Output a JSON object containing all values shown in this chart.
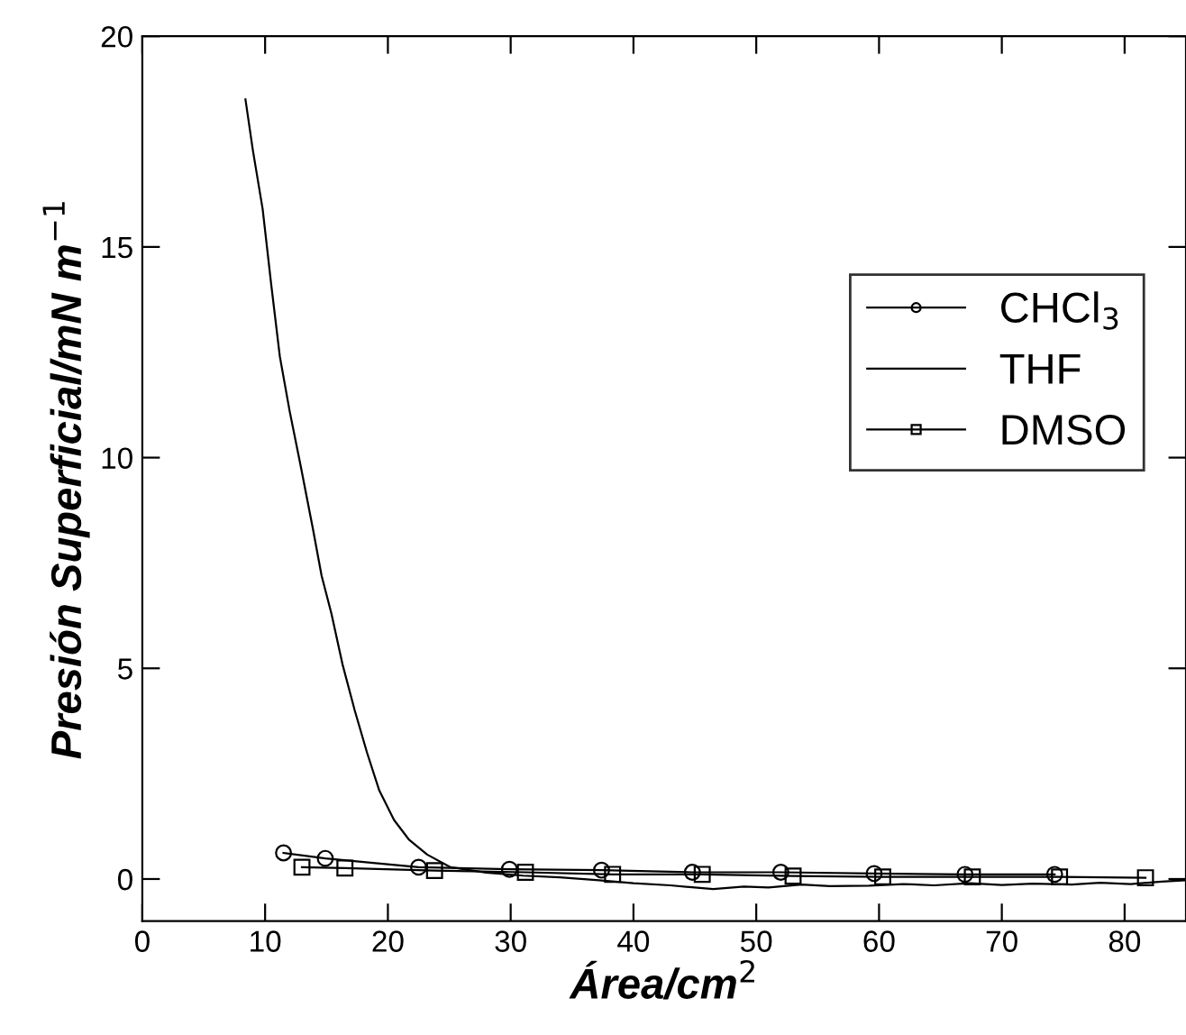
{
  "chart_data": {
    "type": "line",
    "xlabel": "Área/cm$^{2}$",
    "ylabel": "Presión Superficial/mN m$^{−1}$",
    "xlim": [
      0,
      85
    ],
    "ylim": [
      -1,
      20
    ],
    "xticks": [
      0,
      10,
      20,
      30,
      40,
      50,
      60,
      70,
      80
    ],
    "yticks": [
      0,
      5,
      10,
      15,
      20
    ],
    "grid": false,
    "legend": "right",
    "line_style": "solid",
    "series": [
      {
        "name": "CHCl$_{3}$",
        "color": "#000000",
        "marker": "circle",
        "x": [
          11.5,
          14.9,
          22.5,
          29.9,
          37.4,
          44.8,
          52.0,
          59.6,
          67.0,
          74.3
        ],
        "values": [
          0.62,
          0.49,
          0.28,
          0.23,
          0.21,
          0.16,
          0.16,
          0.13,
          0.11,
          0.11
        ]
      },
      {
        "name": "THF",
        "color": "#000000",
        "marker": "none",
        "x": [
          8.4,
          9.0,
          9.8,
          10.5,
          11.2,
          12.0,
          12.9,
          13.9,
          14.6,
          15.4,
          16.3,
          17.3,
          18.3,
          19.3,
          20.5,
          21.7,
          23.2,
          24.6,
          25.1,
          28.0,
          31.0,
          34.0,
          37.2,
          40.0,
          43.0,
          46.5,
          49.0,
          51.0,
          53.7,
          56.0,
          59.2,
          62.0,
          64.5,
          67.4,
          70.0,
          72.5,
          75.7,
          78.0,
          80.5,
          83.0,
          84.9
        ],
        "values": [
          18.5,
          17.3,
          15.9,
          14.1,
          12.4,
          11.1,
          9.8,
          8.3,
          7.2,
          6.3,
          5.1,
          4.0,
          3.0,
          2.1,
          1.4,
          0.94,
          0.58,
          0.36,
          0.28,
          0.15,
          0.08,
          0.04,
          -0.03,
          -0.1,
          -0.15,
          -0.24,
          -0.18,
          -0.2,
          -0.13,
          -0.17,
          -0.16,
          -0.12,
          -0.15,
          -0.1,
          -0.14,
          -0.11,
          -0.13,
          -0.09,
          -0.12,
          -0.06,
          -0.03
        ]
      },
      {
        "name": "DMSO",
        "color": "#000000",
        "marker": "square",
        "x": [
          13.0,
          16.5,
          23.8,
          31.2,
          38.3,
          45.6,
          53.0,
          60.3,
          67.6,
          74.7,
          81.7
        ],
        "values": [
          0.28,
          0.26,
          0.2,
          0.16,
          0.11,
          0.11,
          0.07,
          0.05,
          0.05,
          0.05,
          0.03
        ]
      }
    ]
  }
}
